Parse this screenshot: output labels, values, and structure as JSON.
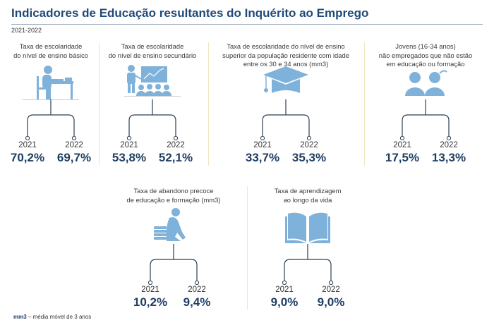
{
  "header": {
    "title": "Indicadores de Educação resultantes do Inquérito ao Emprego",
    "period": "2021-2022"
  },
  "colors": {
    "title": "#1f4a78",
    "icon": "#7fb2db",
    "value": "#1f3f63",
    "divider": "#f3e7bd"
  },
  "indicators": [
    {
      "title_lines": [
        "Taxa de escolaridade",
        "do nível de ensino básico"
      ],
      "icon": "student-at-desk-icon",
      "years": [
        "2021",
        "2022"
      ],
      "values": [
        "70,2%",
        "69,7%"
      ]
    },
    {
      "title_lines": [
        "Taxa de escolaridade",
        "do nível de ensino secundário"
      ],
      "icon": "teacher-classroom-icon",
      "years": [
        "2021",
        "2022"
      ],
      "values": [
        "53,8%",
        "52,1%"
      ]
    },
    {
      "title_lines": [
        "Taxa de escolaridade do nível de ensino",
        "superior da população residente com idade",
        "entre os 30 e 34 anos (mm3)"
      ],
      "icon": "graduation-cap-icon",
      "years": [
        "2021",
        "2022"
      ],
      "values": [
        "33,7%",
        "35,3%"
      ]
    },
    {
      "title_lines": [
        "Jovens (16-34 anos)",
        "não empregados que não estão",
        "em educação ou formação"
      ],
      "icon": "two-people-icon",
      "years": [
        "2021",
        "2022"
      ],
      "values": [
        "17,5%",
        "13,3%"
      ]
    },
    {
      "title_lines": [
        "Taxa de abandono precoce",
        "de educação e formação (mm3)"
      ],
      "icon": "person-sitting-books-icon",
      "years": [
        "2021",
        "2022"
      ],
      "values": [
        "10,2%",
        "9,4%"
      ]
    },
    {
      "title_lines": [
        "Taxa de aprendizagem",
        "ao longo da vida"
      ],
      "icon": "open-book-icon",
      "years": [
        "2021",
        "2022"
      ],
      "values": [
        "9,0%",
        "9,0%"
      ]
    }
  ],
  "footnote": {
    "abbr": "mm3",
    "text": " – média móvel de 3 anos"
  }
}
